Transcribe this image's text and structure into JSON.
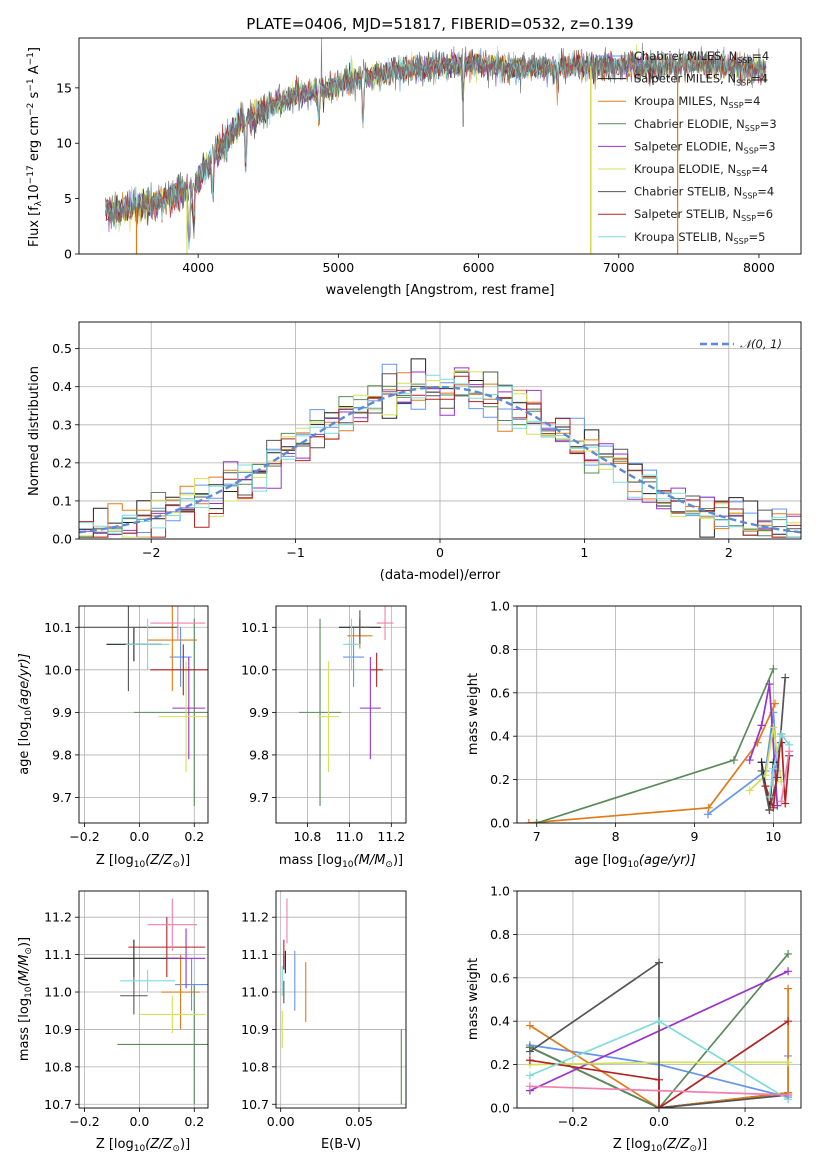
{
  "figure": {
    "title": "PLATE=0406, MJD=51817, FIBERID=0532, z=0.139"
  },
  "colors": {
    "Chabrier MILES": "#6495ed",
    "Salpeter MILES": "#222222",
    "Kroupa MILES": "#e07b1a",
    "Chabrier ELODIE": "#5a8a5a",
    "Salpeter ELODIE": "#9932cc",
    "Kroupa ELODIE": "#d4e157",
    "Chabrier STELIB": "#555555",
    "Salpeter STELIB": "#b22222",
    "Kroupa STELIB": "#7fdada",
    "extra": "#f080b0",
    "normal": "#5b8ad6"
  },
  "panels": {
    "spectrum": {
      "xlabel": "wavelength [Angstrom, rest frame]",
      "ylabel": "Flux [f",
      "ylabel_sub": "λ",
      "ylabel_rest": "10",
      "ylabel_sup": "−17",
      "ylabel_end": " erg cm",
      "ylabel_sup2": "−2",
      "ylabel_s": " s",
      "ylabel_sup3": "−1",
      "ylabel_A": " A",
      "ylabel_sup4": "−1",
      "ylabel_close": "]",
      "legend": [
        {
          "name": "Chabrier MILES, N",
          "sub": "SSP",
          "val": "=4"
        },
        {
          "name": "Salpeter MILES, N",
          "sub": "SSP",
          "val": "=4"
        },
        {
          "name": "Kroupa MILES, N",
          "sub": "SSP",
          "val": "=4"
        },
        {
          "name": "Chabrier ELODIE, N",
          "sub": "SSP",
          "val": "=3"
        },
        {
          "name": "Salpeter ELODIE, N",
          "sub": "SSP",
          "val": "=3"
        },
        {
          "name": "Kroupa ELODIE, N",
          "sub": "SSP",
          "val": "=4"
        },
        {
          "name": "Chabrier STELIB, N",
          "sub": "SSP",
          "val": "=4"
        },
        {
          "name": "Salpeter STELIB, N",
          "sub": "SSP",
          "val": "=6"
        },
        {
          "name": "Kroupa STELIB, N",
          "sub": "SSP",
          "val": "=5"
        }
      ]
    },
    "residuals": {
      "xlabel": "(data-model)/error",
      "ylabel": "Normed distribution",
      "legend": "𝒩(0, 1)"
    },
    "age_Z": {
      "xlabel": "Z [log",
      "xsub": "10",
      "xrest": "(Z/Z",
      "xsun": "⊙",
      "xclose": ")]",
      "ylabel": "age  [log",
      "ysub": "10",
      "yrest": "(age/yr)]"
    },
    "age_mass": {
      "xlabel": "mass [log",
      "xsub": "10",
      "xrest": "(M/M",
      "xsun": "⊙",
      "xclose": ")]"
    },
    "mw_age": {
      "xlabel": "age  [log",
      "xsub": "10",
      "xrest": "(age/yr)]",
      "ylabel": "mass weight"
    },
    "mass_Z": {
      "xlabel": "Z [log",
      "xsub": "10",
      "xrest": "(Z/Z",
      "xsun": "⊙",
      "xclose": ")]",
      "ylabel": "mass [log",
      "ysub": "10",
      "yrest": "(M/M",
      "ysun": "⊙",
      "yclose": ")]"
    },
    "mass_ebv": {
      "xlabel": "E(B-V)"
    },
    "mw_Z": {
      "xlabel": "Z [log",
      "xsub": "10",
      "xrest": "(Z/Z",
      "xsun": "⊙",
      "xclose": ")]",
      "ylabel": "mass weight"
    }
  },
  "chart_data": [
    {
      "type": "line",
      "title": "PLATE=0406, MJD=51817, FIBERID=0532, z=0.139",
      "xlabel": "wavelength [Angstrom, rest frame]",
      "xlim": [
        3150,
        8300
      ],
      "ylim": [
        0,
        19.5
      ],
      "xticks": [
        4000,
        5000,
        6000,
        7000,
        8000
      ],
      "yticks": [
        0,
        5,
        10,
        15
      ],
      "wavelength_anchor": [
        3350,
        3550,
        3750,
        3950,
        4000,
        4150,
        4300,
        4500,
        4700,
        4900,
        5100,
        5300,
        5500,
        5700,
        5900,
        6100,
        6300,
        6500,
        6700,
        6900,
        7100,
        7300,
        7500,
        7700,
        7900,
        8050
      ],
      "flux_anchor": [
        3.8,
        4.2,
        4.8,
        6.0,
        6.8,
        9.5,
        11.8,
        13.3,
        14.3,
        15.0,
        15.6,
        16.3,
        16.7,
        16.9,
        17.2,
        17.0,
        16.8,
        16.9,
        17.0,
        16.9,
        17.0,
        16.8,
        17.1,
        17.0,
        16.7,
        16.5
      ],
      "series": [
        "Chabrier MILES",
        "Salpeter MILES",
        "Kroupa MILES",
        "Chabrier ELODIE",
        "Salpeter ELODIE",
        "Kroupa ELODIE",
        "Chabrier STELIB",
        "Salpeter STELIB",
        "Kroupa STELIB"
      ],
      "drop_lines": [
        {
          "x": 3560,
          "series": "Kroupa MILES"
        },
        {
          "x": 3920,
          "series": "Kroupa ELODIE"
        },
        {
          "x": 6800,
          "series": "Kroupa MILES"
        },
        {
          "x": 6800,
          "series": "Kroupa ELODIE"
        },
        {
          "x": 7420,
          "series": "Kroupa MILES"
        }
      ]
    },
    {
      "type": "area",
      "xlabel": "(data-model)/error",
      "ylabel": "Normed distribution",
      "xlim": [
        -2.5,
        2.5
      ],
      "ylim": [
        0,
        0.57
      ],
      "xticks": [
        -2,
        -1,
        0,
        1,
        2
      ],
      "yticks": [
        0.0,
        0.1,
        0.2,
        0.3,
        0.4,
        0.5
      ],
      "bin_width": 0.1,
      "curve": "N(0,1) gaussian"
    },
    {
      "type": "scatter",
      "ylabel": "age  [log10(age/yr)]",
      "xlim": [
        -0.22,
        0.25
      ],
      "ylim": [
        9.64,
        10.15
      ],
      "xticks": [
        -0.2,
        0.0,
        0.2
      ],
      "yticks": [
        9.7,
        9.8,
        9.9,
        10.0,
        10.1
      ],
      "points": [
        {
          "series": "Chabrier MILES",
          "x": 0.15,
          "y": 10.03,
          "xerr": 0.04,
          "yerr": 0.07
        },
        {
          "series": "Salpeter MILES",
          "x": -0.02,
          "y": 10.06,
          "xerr": 0.1,
          "yerr": 0.04
        },
        {
          "series": "Kroupa MILES",
          "x": 0.12,
          "y": 10.07,
          "xerr": 0.09,
          "yerr": 0.12
        },
        {
          "series": "Chabrier ELODIE",
          "x": 0.2,
          "y": 9.9,
          "xerr": 0.22,
          "yerr": 0.22
        },
        {
          "series": "Salpeter ELODIE",
          "x": 0.18,
          "y": 9.91,
          "xerr": 0.06,
          "yerr": 0.12
        },
        {
          "series": "Kroupa ELODIE",
          "x": 0.17,
          "y": 9.89,
          "xerr": 0.1,
          "yerr": 0.13
        },
        {
          "series": "Chabrier STELIB",
          "x": -0.04,
          "y": 10.1,
          "xerr": 0.18,
          "yerr": 0.15
        },
        {
          "series": "Salpeter STELIB",
          "x": 0.16,
          "y": 10.0,
          "xerr": 0.12,
          "yerr": 0.06
        },
        {
          "series": "Kroupa STELIB",
          "x": 0.03,
          "y": 10.06,
          "xerr": 0.08,
          "yerr": 0.06
        },
        {
          "series": "extra",
          "x": 0.14,
          "y": 10.11,
          "xerr": 0.1,
          "yerr": 0.04
        }
      ]
    },
    {
      "type": "scatter",
      "xlim": [
        10.65,
        11.27
      ],
      "ylim": [
        9.64,
        10.15
      ],
      "xticks": [
        10.8,
        11.0,
        11.2
      ],
      "yticks": [
        9.7,
        9.8,
        9.9,
        10.0,
        10.1
      ],
      "points": [
        {
          "series": "Chabrier MILES",
          "x": 11.02,
          "y": 10.03,
          "xerr": 0.05,
          "yerr": 0.07
        },
        {
          "series": "Salpeter MILES",
          "x": 11.05,
          "y": 10.1,
          "xerr": 0.1,
          "yerr": 0.02
        },
        {
          "series": "Kroupa MILES",
          "x": 11.05,
          "y": 10.08,
          "xerr": 0.06,
          "yerr": 0.03
        },
        {
          "series": "Chabrier ELODIE",
          "x": 10.86,
          "y": 9.9,
          "xerr": 0.1,
          "yerr": 0.22
        },
        {
          "series": "Salpeter ELODIE",
          "x": 11.1,
          "y": 9.91,
          "xerr": 0.05,
          "yerr": 0.12
        },
        {
          "series": "Kroupa ELODIE",
          "x": 10.9,
          "y": 9.89,
          "xerr": 0.05,
          "yerr": 0.13
        },
        {
          "series": "Chabrier STELIB",
          "x": 11.05,
          "y": 10.1,
          "xerr": 0.05,
          "yerr": 0.04
        },
        {
          "series": "Salpeter STELIB",
          "x": 11.13,
          "y": 10.0,
          "xerr": 0.03,
          "yerr": 0.04
        },
        {
          "series": "Kroupa STELIB",
          "x": 11.01,
          "y": 10.06,
          "xerr": 0.04,
          "yerr": 0.06
        },
        {
          "series": "extra",
          "x": 11.17,
          "y": 10.11,
          "xerr": 0.04,
          "yerr": 0.04
        }
      ]
    },
    {
      "type": "line",
      "ylabel": "mass weight",
      "xlim": [
        6.75,
        10.35
      ],
      "ylim": [
        0,
        1.0
      ],
      "xticks": [
        7,
        8,
        9,
        10
      ],
      "yticks": [
        0.0,
        0.2,
        0.4,
        0.6,
        0.8,
        1.0
      ],
      "series": [
        {
          "name": "Chabrier MILES",
          "x": [
            9.17,
            9.9,
            10.0,
            10.05
          ],
          "y": [
            0.04,
            0.24,
            0.51,
            0.24
          ]
        },
        {
          "name": "Salpeter MILES",
          "x": [
            9.85,
            9.95,
            10.0,
            10.1
          ],
          "y": [
            0.28,
            0.06,
            0.28,
            0.37
          ]
        },
        {
          "name": "Kroupa MILES",
          "x": [
            6.9,
            9.18,
            9.8,
            10.02
          ],
          "y": [
            0.0,
            0.07,
            0.37,
            0.55
          ]
        },
        {
          "name": "Chabrier ELODIE",
          "x": [
            7.0,
            9.5,
            10.0
          ],
          "y": [
            0.0,
            0.29,
            0.71
          ]
        },
        {
          "name": "Salpeter ELODIE",
          "x": [
            9.7,
            9.85,
            9.95,
            10.05
          ],
          "y": [
            0.29,
            0.45,
            0.64,
            0.08
          ]
        },
        {
          "name": "Kroupa ELODIE",
          "x": [
            9.7,
            9.9,
            10.0,
            10.1
          ],
          "y": [
            0.15,
            0.22,
            0.44,
            0.19
          ]
        },
        {
          "name": "Chabrier STELIB",
          "x": [
            9.85,
            9.95,
            10.05,
            10.15
          ],
          "y": [
            0.24,
            0.06,
            0.21,
            0.67
          ]
        },
        {
          "name": "Salpeter STELIB",
          "x": [
            9.9,
            10.0,
            10.1,
            10.15,
            10.2
          ],
          "y": [
            0.17,
            0.07,
            0.41,
            0.09,
            0.31
          ]
        },
        {
          "name": "Kroupa STELIB",
          "x": [
            9.95,
            10.0,
            10.1,
            10.2
          ],
          "y": [
            0.12,
            0.25,
            0.41,
            0.36
          ]
        },
        {
          "name": "extra",
          "x": [
            10.1,
            10.2
          ],
          "y": [
            0.1,
            0.33
          ]
        }
      ]
    },
    {
      "type": "scatter",
      "ylabel": "mass [log10(M/M⊙)]",
      "xlim": [
        -0.22,
        0.25
      ],
      "ylim": [
        10.69,
        11.27
      ],
      "xticks": [
        -0.2,
        0.0,
        0.2
      ],
      "yticks": [
        10.7,
        10.8,
        10.9,
        11.0,
        11.1,
        11.2
      ],
      "points": [
        {
          "series": "Chabrier MILES",
          "x": 0.19,
          "y": 11.02,
          "xerr": 0.06,
          "yerr": 0.07
        },
        {
          "series": "Salpeter MILES",
          "x": -0.02,
          "y": 11.09,
          "xerr": 0.18,
          "yerr": 0.05
        },
        {
          "series": "Kroupa MILES",
          "x": 0.15,
          "y": 11.0,
          "xerr": 0.07,
          "yerr": 0.1
        },
        {
          "series": "Chabrier ELODIE",
          "x": 0.2,
          "y": 10.86,
          "xerr": 0.28,
          "yerr": 0.16
        },
        {
          "series": "Salpeter ELODIE",
          "x": 0.17,
          "y": 11.09,
          "xerr": 0.07,
          "yerr": 0.08
        },
        {
          "series": "Kroupa ELODIE",
          "x": 0.12,
          "y": 10.94,
          "xerr": 0.12,
          "yerr": 0.05
        },
        {
          "series": "Chabrier STELIB",
          "x": -0.02,
          "y": 10.99,
          "xerr": 0.05,
          "yerr": 0.05
        },
        {
          "series": "Salpeter STELIB",
          "x": 0.1,
          "y": 11.12,
          "xerr": 0.14,
          "yerr": 0.08
        },
        {
          "series": "Kroupa STELIB",
          "x": 0.03,
          "y": 11.03,
          "xerr": 0.1,
          "yerr": 0.03
        },
        {
          "series": "extra",
          "x": 0.12,
          "y": 11.18,
          "xerr": 0.09,
          "yerr": 0.07
        }
      ]
    },
    {
      "type": "scatter",
      "xlabel": "E(B-V)",
      "xlim": [
        -0.003,
        0.08
      ],
      "ylim": [
        10.69,
        11.27
      ],
      "xticks": [
        0.0,
        0.05
      ],
      "yticks": [
        10.7,
        10.8,
        10.9,
        11.0,
        11.1,
        11.2
      ],
      "points": [
        {
          "series": "Chabrier MILES",
          "x": 0.009,
          "y": 11.03,
          "yerr": 0.08
        },
        {
          "series": "Salpeter MILES",
          "x": 0.003,
          "y": 11.08,
          "yerr": 0.03
        },
        {
          "series": "Kroupa MILES",
          "x": 0.016,
          "y": 11.0,
          "yerr": 0.08
        },
        {
          "series": "Chabrier ELODIE",
          "x": 0.077,
          "y": 10.8,
          "yerr": 0.1
        },
        {
          "series": "Salpeter ELODIE",
          "x": 0.002,
          "y": 11.08,
          "yerr": 0.02
        },
        {
          "series": "Kroupa ELODIE",
          "x": 0.001,
          "y": 10.9,
          "yerr": 0.05
        },
        {
          "series": "Chabrier STELIB",
          "x": 0.002,
          "y": 11.0,
          "yerr": 0.03
        },
        {
          "series": "Salpeter STELIB",
          "x": 0.002,
          "y": 11.1,
          "yerr": 0.04
        },
        {
          "series": "Kroupa STELIB",
          "x": 0.001,
          "y": 11.03,
          "yerr": 0.04
        },
        {
          "series": "extra",
          "x": 0.004,
          "y": 11.19,
          "yerr": 0.06
        }
      ]
    },
    {
      "type": "line",
      "ylabel": "mass weight",
      "xlim": [
        -0.33,
        0.33
      ],
      "ylim": [
        0,
        1.0
      ],
      "xticks": [
        -0.2,
        0.0,
        0.2
      ],
      "yticks": [
        0.0,
        0.2,
        0.4,
        0.6,
        0.8,
        1.0
      ],
      "series": [
        {
          "name": "Chabrier MILES",
          "x": [
            -0.3,
            0.0,
            0.3,
            0.3
          ],
          "y": [
            0.29,
            0.2,
            0.05,
            0.24
          ]
        },
        {
          "name": "Salpeter MILES",
          "x": [
            -0.3,
            0.0,
            0.3
          ],
          "y": [
            0.28,
            0.0,
            0.07
          ]
        },
        {
          "name": "Kroupa MILES",
          "x": [
            -0.3,
            0.0,
            0.3,
            0.3
          ],
          "y": [
            0.38,
            0.0,
            0.07,
            0.55
          ]
        },
        {
          "name": "Chabrier ELODIE",
          "x": [
            -0.3,
            0.0,
            0.3
          ],
          "y": [
            0.28,
            0.0,
            0.71
          ]
        },
        {
          "name": "Salpeter ELODIE",
          "x": [
            -0.3,
            0.3
          ],
          "y": [
            0.08,
            0.63
          ]
        },
        {
          "name": "Kroupa ELODIE",
          "x": [
            -0.3,
            0.0,
            0.3
          ],
          "y": [
            0.2,
            0.21,
            0.21
          ]
        },
        {
          "name": "Chabrier STELIB",
          "x": [
            -0.3,
            0.0,
            0.0,
            0.3
          ],
          "y": [
            0.26,
            0.67,
            0.0,
            0.06
          ]
        },
        {
          "name": "Salpeter STELIB",
          "x": [
            -0.3,
            0.0,
            0.0,
            0.3
          ],
          "y": [
            0.22,
            0.13,
            0.0,
            0.4
          ]
        },
        {
          "name": "Kroupa STELIB",
          "x": [
            -0.3,
            0.0,
            0.3
          ],
          "y": [
            0.15,
            0.4,
            0.04
          ]
        },
        {
          "name": "extra",
          "x": [
            -0.3,
            0.3
          ],
          "y": [
            0.1,
            0.06
          ]
        }
      ]
    }
  ]
}
